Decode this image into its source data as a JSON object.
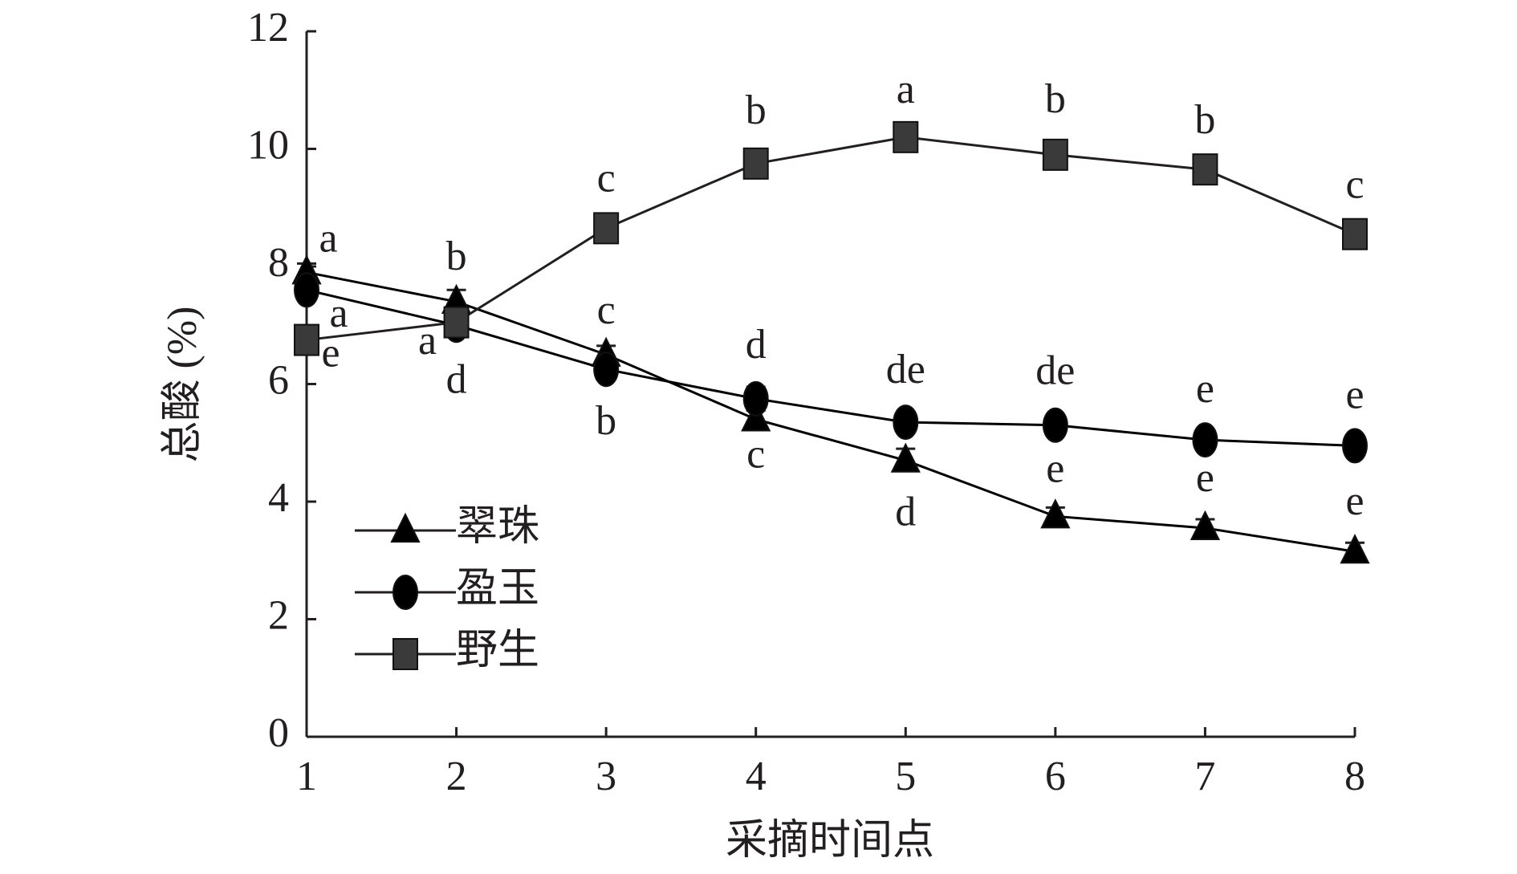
{
  "chart_data": {
    "type": "line",
    "y_label": "总酸 (%)",
    "x_label": "采摘时间点",
    "x": [
      1,
      2,
      3,
      4,
      5,
      6,
      7,
      8
    ],
    "xlim": [
      1,
      8
    ],
    "xticks": [
      1,
      2,
      3,
      4,
      5,
      6,
      7,
      8
    ],
    "ylim": [
      0,
      12
    ],
    "yticks": [
      0,
      2,
      4,
      6,
      8,
      10,
      12
    ],
    "legend": "lower left",
    "series": [
      {
        "name": "翠珠",
        "marker": "triangle",
        "color": "#000000",
        "values": [
          7.9,
          7.4,
          6.5,
          5.4,
          4.7,
          3.75,
          3.55,
          3.15
        ],
        "errors": [
          0.15,
          0.2,
          0.15,
          0.15,
          0.2,
          0.15,
          0.15,
          0.15
        ],
        "labels": [
          "a",
          "b",
          "c",
          "c",
          "d",
          "e",
          "e",
          "e"
        ]
      },
      {
        "name": "盈玉",
        "marker": "circle",
        "color": "#000000",
        "values": [
          7.6,
          7.0,
          6.25,
          5.75,
          5.35,
          5.3,
          5.05,
          4.95
        ],
        "errors": [
          0.2,
          0.15,
          0.15,
          0.2,
          0.1,
          0.15,
          0.15,
          0.1
        ],
        "labels": [
          "a",
          "a",
          "b",
          "d",
          "de",
          "de",
          "e",
          "e"
        ]
      },
      {
        "name": "野生",
        "marker": "square",
        "color": "#3a3a3a",
        "values": [
          6.75,
          7.05,
          8.65,
          9.75,
          10.2,
          9.9,
          9.65,
          8.55
        ],
        "errors": [
          0.1,
          0.15,
          0.15,
          0.15,
          0.15,
          0.2,
          0.15,
          0.1
        ],
        "labels": [
          "e",
          "d",
          "c",
          "b",
          "a",
          "b",
          "b",
          "c"
        ]
      }
    ]
  }
}
